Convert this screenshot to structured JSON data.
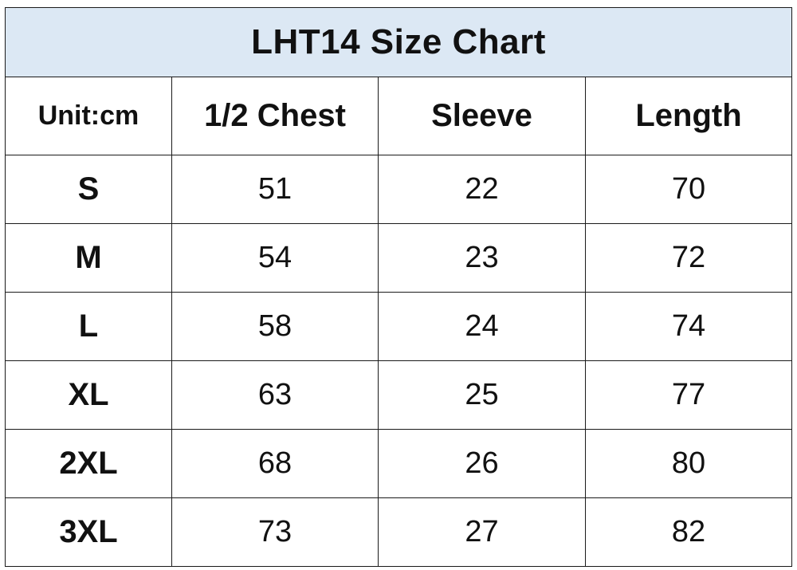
{
  "title": "LHT14 Size Chart",
  "columns": {
    "unit": "Unit:cm",
    "chest": "1/2 Chest",
    "sleeve": "Sleeve",
    "length": "Length"
  },
  "rows": [
    {
      "size": "S",
      "chest": "51",
      "sleeve": "22",
      "length": "70"
    },
    {
      "size": "M",
      "chest": "54",
      "sleeve": "23",
      "length": "72"
    },
    {
      "size": "L",
      "chest": "58",
      "sleeve": "24",
      "length": "74"
    },
    {
      "size": "XL",
      "chest": "63",
      "sleeve": "25",
      "length": "77"
    },
    {
      "size": "2XL",
      "chest": "68",
      "sleeve": "26",
      "length": "80"
    },
    {
      "size": "3XL",
      "chest": "73",
      "sleeve": "27",
      "length": "82"
    }
  ],
  "colors": {
    "title_background": "#dce8f4",
    "border": "#1a1a1a",
    "text": "#111111"
  }
}
